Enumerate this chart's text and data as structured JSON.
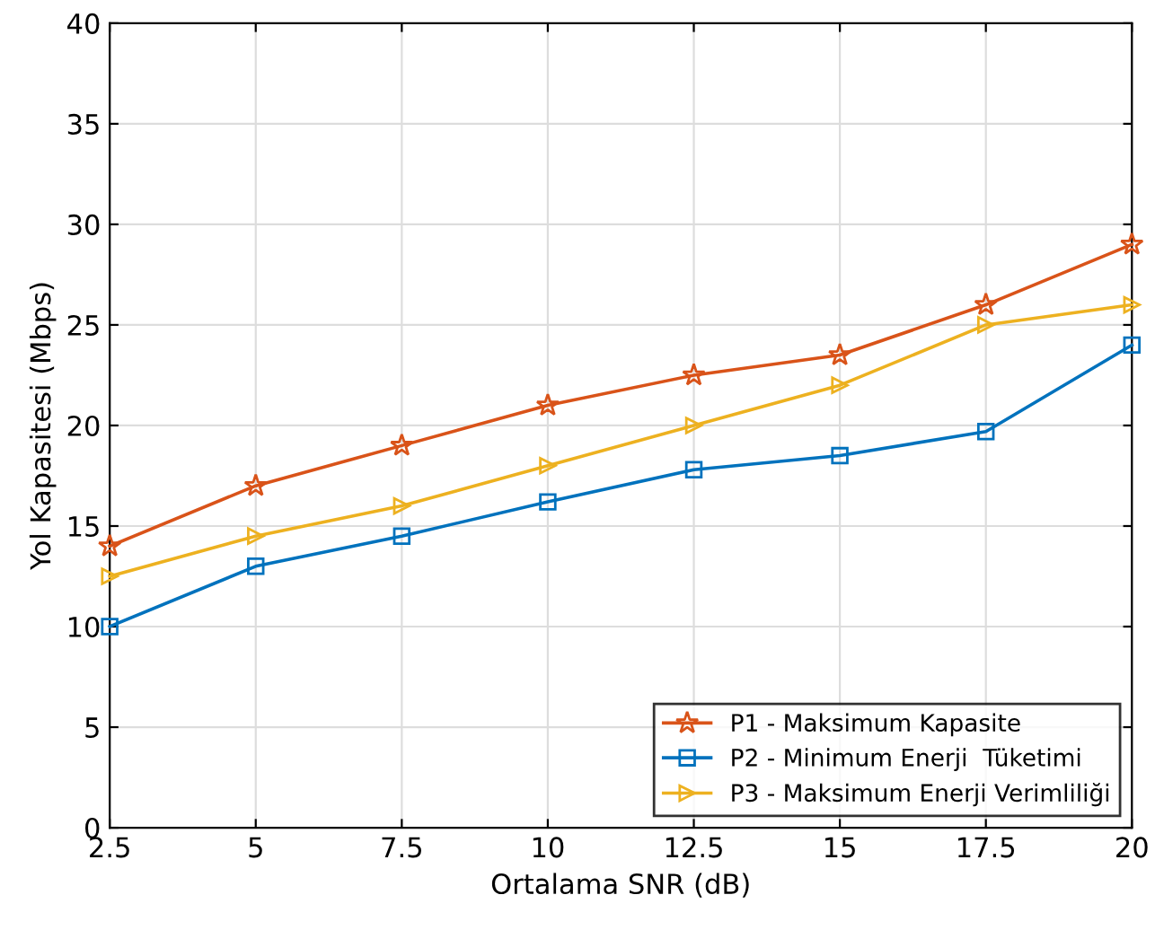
{
  "chart_data": {
    "type": "line",
    "xlabel": "Ortalama SNR (dB)",
    "ylabel": "Yol Kapasitesi (Mbps)",
    "x": [
      2.5,
      5,
      7.5,
      10,
      12.5,
      15,
      17.5,
      20
    ],
    "series": [
      {
        "name": "P1 - Maksimum Kapasite",
        "color": "#d95319",
        "marker": "star",
        "values": [
          14,
          17,
          19,
          21,
          22.5,
          23.5,
          26,
          29
        ]
      },
      {
        "name": "P2 - Minimum Enerji  Tüketimi",
        "color": "#0072bd",
        "marker": "square",
        "values": [
          10,
          13,
          14.5,
          16.2,
          17.8,
          18.5,
          19.7,
          24
        ]
      },
      {
        "name": "P3 - Maksimum Enerji Verimliliği",
        "color": "#edb120",
        "marker": "triangle",
        "values": [
          12.5,
          14.5,
          16,
          18,
          20,
          22,
          25,
          26
        ]
      }
    ],
    "xlim": [
      2.5,
      20
    ],
    "xticks": [
      2.5,
      5,
      7.5,
      10,
      12.5,
      15,
      17.5,
      20
    ],
    "ylim": [
      0,
      40
    ],
    "yticks": [
      0,
      5,
      10,
      15,
      20,
      25,
      30,
      35,
      40
    ],
    "grid": true,
    "legend": "bottom right",
    "line_style": "solid"
  }
}
